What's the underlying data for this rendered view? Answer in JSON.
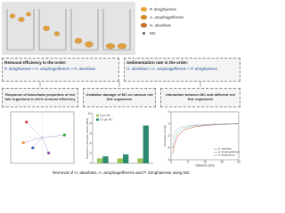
{
  "legend": [
    {
      "label": "P. donghaiense",
      "color": "#e9a83e"
    },
    {
      "label": "A. anophagefferens",
      "color": "#d48b2c"
    },
    {
      "label": "H. akashiwo",
      "color": "#c27232"
    },
    {
      "label": "MC",
      "color": "#5a5a5a"
    }
  ],
  "findings": [
    {
      "title": "Removal efficiency in the order:",
      "order": "P. donghaiense > A. anophagefferens > H. akashiwo"
    },
    {
      "title": "Sedimentation rate in the order:",
      "order": "H. akashiwo > A. anophagefferens > P. donghaiense"
    }
  ],
  "mechanisms": [
    "Response of biocellular properties of red tide organisms in their removal efficiency",
    "Oxidative damage of MC on various red tide organisms",
    "Interaction between MC and different red tide organisms"
  ],
  "charts": [
    {
      "type": "scatter",
      "x": [
        0.7,
        -0.5,
        -0.3,
        0.2,
        -0.6
      ],
      "y": [
        0.1,
        0.6,
        -0.4,
        -0.6,
        -0.2
      ],
      "colors": [
        "#3aa845",
        "#d04040",
        "#4060c0",
        "#9050b0",
        "#e09a30"
      ],
      "xlim": [
        -1,
        1
      ],
      "ylim": [
        -1,
        1
      ]
    },
    {
      "type": "bar",
      "y_label": "Inductive of peroxide values (ROS)",
      "series": [
        {
          "name": "0 g/L MC",
          "color": "#9cc65c",
          "values": [
            1,
            1,
            1
          ]
        },
        {
          "name": "0.5 g/L MC",
          "color": "#2f8a72",
          "values": [
            1.4,
            1.8,
            7.6
          ]
        }
      ],
      "ylim": [
        0,
        10
      ],
      "yticks": [
        0,
        2,
        4,
        6,
        8,
        10
      ]
    },
    {
      "type": "line",
      "x_label": "Distance (nm)",
      "y_label": "Interaction energy",
      "x": [
        0.5,
        1,
        2,
        4,
        7,
        10,
        15,
        20
      ],
      "series": [
        {
          "name": "H. akashiwo",
          "color": "#d04040",
          "values": [
            -5,
            -3.5,
            -2,
            -1,
            -0.5,
            -0.3,
            -0.1,
            0
          ]
        },
        {
          "name": "A. anophagefferens",
          "color": "#3a9a50",
          "values": [
            -4,
            -2.6,
            -1.4,
            -0.7,
            -0.3,
            -0.2,
            -0.1,
            0
          ]
        },
        {
          "name": "P. donghaiense",
          "color": "#4a60c8",
          "values": [
            -2.5,
            -1.5,
            -0.8,
            -0.4,
            -0.2,
            -0.1,
            0,
            0
          ]
        }
      ],
      "xlim": [
        0,
        20
      ],
      "ylim": [
        -6,
        2
      ],
      "xticks": [
        0,
        5,
        10,
        15,
        20
      ],
      "yticks": [
        -6,
        -4,
        -2,
        0,
        2
      ]
    }
  ],
  "caption": "Removal of H. akashiwo, A. anophagefferens and P. donghaiense using MC"
}
